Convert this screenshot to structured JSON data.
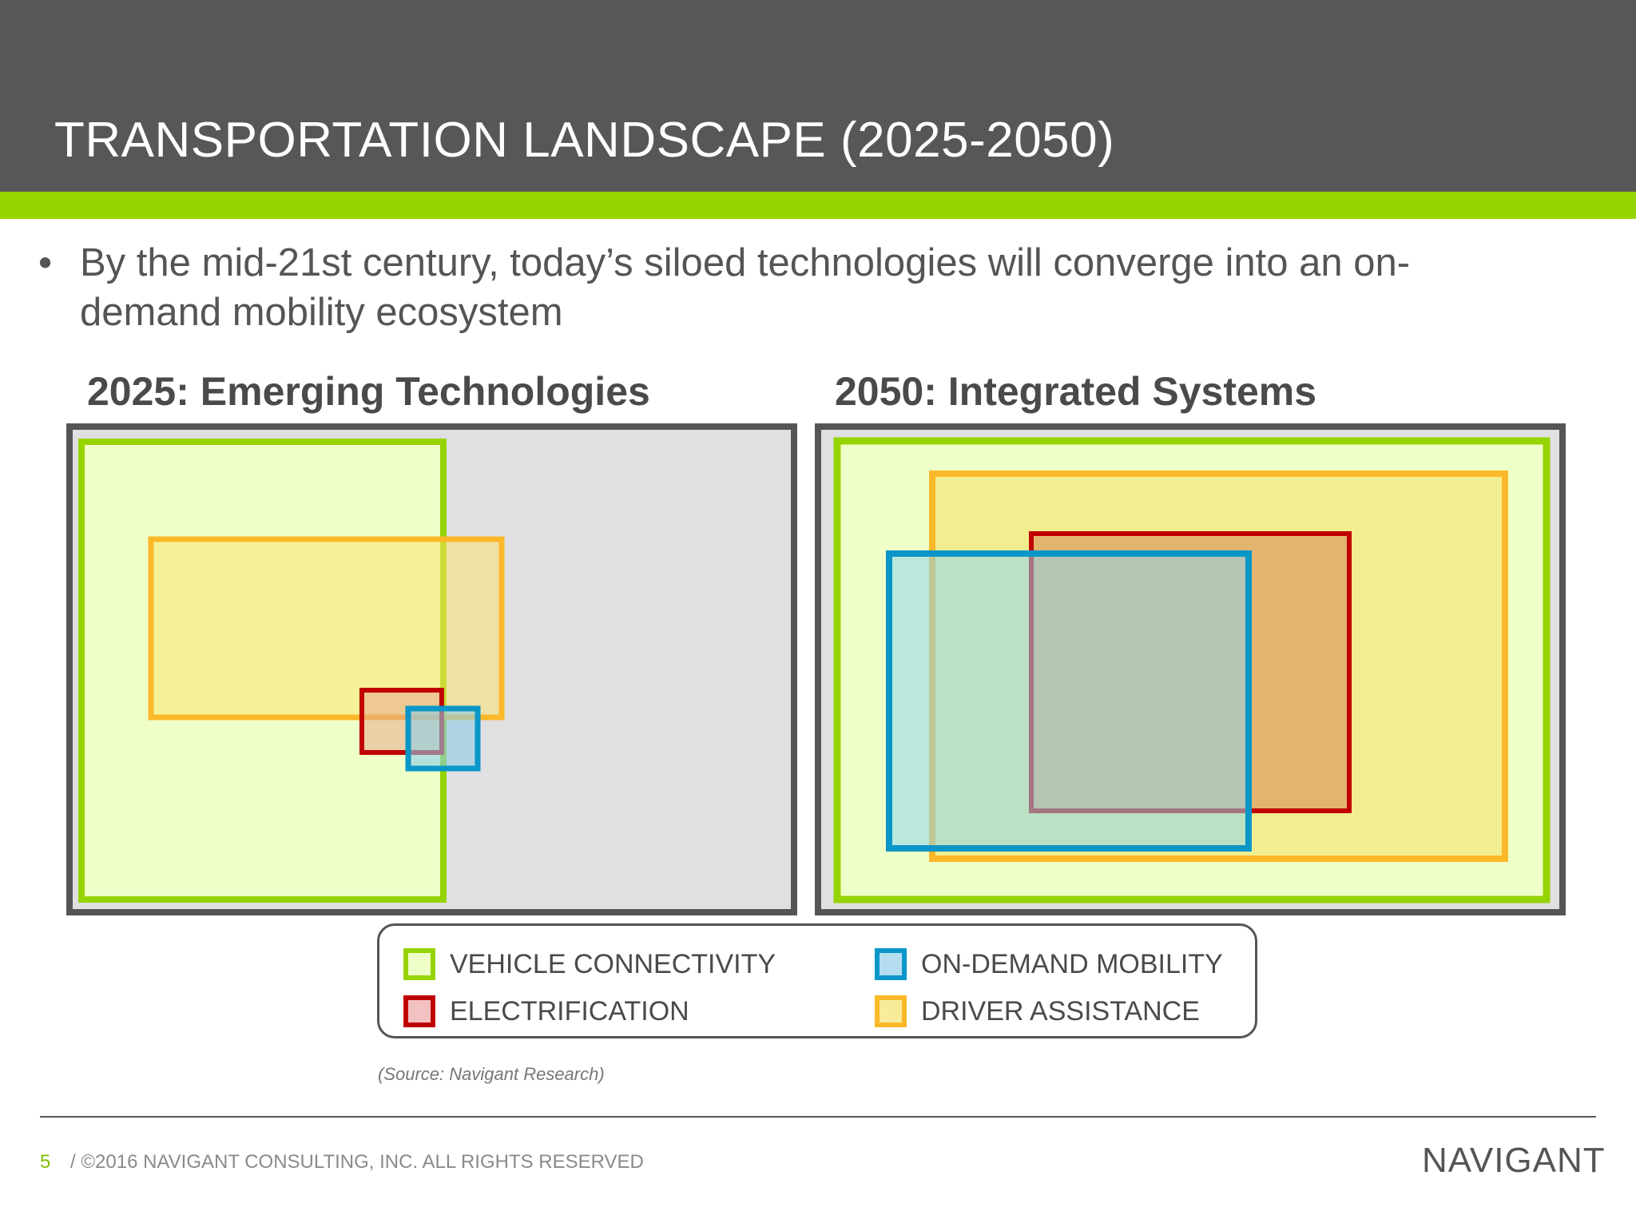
{
  "header": {
    "title": "TRANSPORTATION LANDSCAPE (2025-2050)"
  },
  "bullet": {
    "marker": "•",
    "text": "By the mid-21st century, today’s siloed technologies will converge into an on-demand mobility ecosystem"
  },
  "panels": {
    "left": {
      "heading": "2025: Emerging Technologies"
    },
    "right": {
      "heading": "2050: Integrated Systems"
    }
  },
  "legend": {
    "items": [
      {
        "label": "VEHICLE CONNECTIVITY",
        "border": "#96d400",
        "fill": "#efffc8"
      },
      {
        "label": "ELECTRIFICATION",
        "border": "#c00000",
        "fill": "#f2c2c2"
      },
      {
        "label": "ON-DEMAND MOBILITY",
        "border": "#0b96c8",
        "fill": "#b4ddf0"
      },
      {
        "label": "DRIVER ASSISTANCE",
        "border": "#fbb829",
        "fill": "#f7ec9a"
      }
    ]
  },
  "source": "(Source: Navigant Research)",
  "footer": {
    "page_number": "5",
    "copyright": "/ ©2016 NAVIGANT CONSULTING, INC. ALL RIGHTS RESERVED",
    "logo": "NAVIGANT"
  },
  "colors": {
    "header_bg": "#575757",
    "accent": "#96d400",
    "panel_border": "#555555",
    "panel_bg": "#e0dfe2"
  }
}
